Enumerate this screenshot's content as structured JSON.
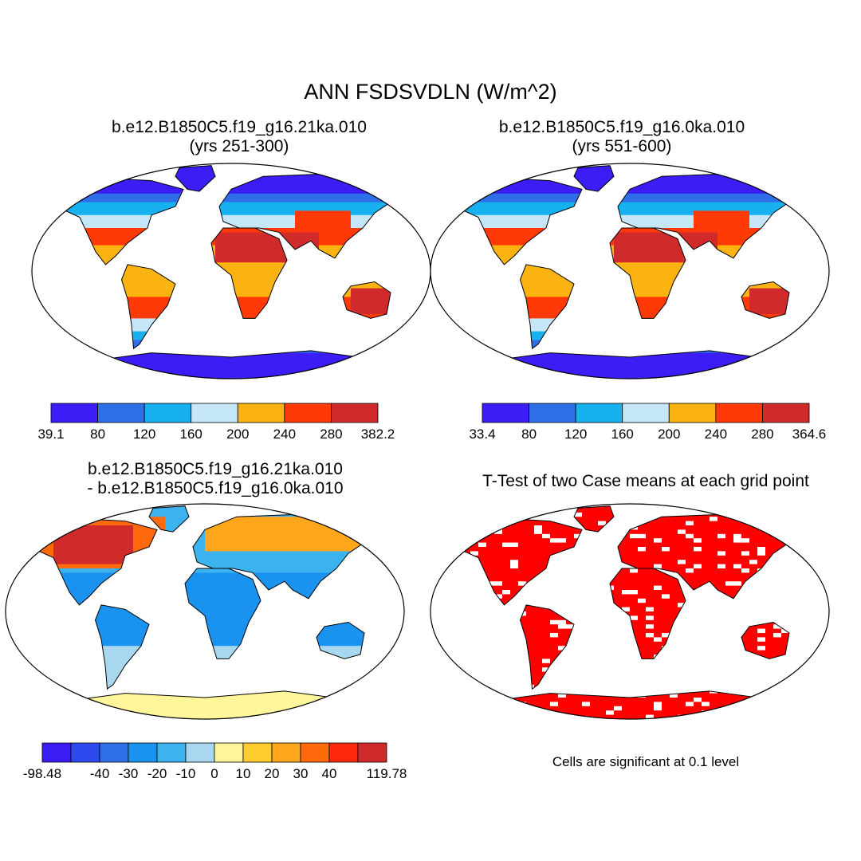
{
  "title": "ANN FSDSVDLN (W/m^2)",
  "panels": [
    {
      "id": "p1",
      "title_line1": "b.e12.B1850C5.f19_g16.21ka.010",
      "title_line2": "(yrs 251-300)"
    },
    {
      "id": "p2",
      "title_line1": "b.e12.B1850C5.f19_g16.0ka.010",
      "title_line2": "(yrs 551-600)"
    },
    {
      "id": "p3",
      "title_line1": "b.e12.B1850C5.f19_g16.21ka.010",
      "title_line2": "- b.e12.B1850C5.f19_g16.0ka.010"
    },
    {
      "id": "p4",
      "title_line1": "T-Test of two Case means at each grid point"
    }
  ],
  "note": "Cells are significant at 0.1 level",
  "colorbars": [
    {
      "panel": "p1",
      "labels": [
        "39.1",
        "80",
        "120",
        "160",
        "200",
        "240",
        "280",
        "382.2"
      ],
      "colors": [
        "#3a1ef5",
        "#2e6ee8",
        "#17b1f0",
        "#c4e6f6",
        "#fab311",
        "#ff3a07",
        "#d12a2a"
      ]
    },
    {
      "panel": "p2",
      "labels": [
        "33.4",
        "80",
        "120",
        "160",
        "200",
        "240",
        "280",
        "364.6"
      ],
      "colors": [
        "#3a1ef5",
        "#2e6ee8",
        "#17b1f0",
        "#c4e6f6",
        "#fab311",
        "#ff3a07",
        "#d12a2a"
      ]
    },
    {
      "panel": "p3",
      "labels": [
        "-98.48",
        "",
        "-40",
        "-30",
        "-20",
        "-10",
        "0",
        "10",
        "20",
        "30",
        "40",
        "",
        "119.78"
      ],
      "colors": [
        "#3a1ef5",
        "#2c4af0",
        "#2e6ee8",
        "#1a93f0",
        "#3cb3ee",
        "#a8d8f0",
        "#fff59a",
        "#ffcc2e",
        "#ffa61a",
        "#ff6a0d",
        "#ff2a0d",
        "#d12a2a"
      ]
    }
  ],
  "map_colors": {
    "land_fill": "#ffffff",
    "coast": "#000000",
    "significant": "#ff0000"
  }
}
